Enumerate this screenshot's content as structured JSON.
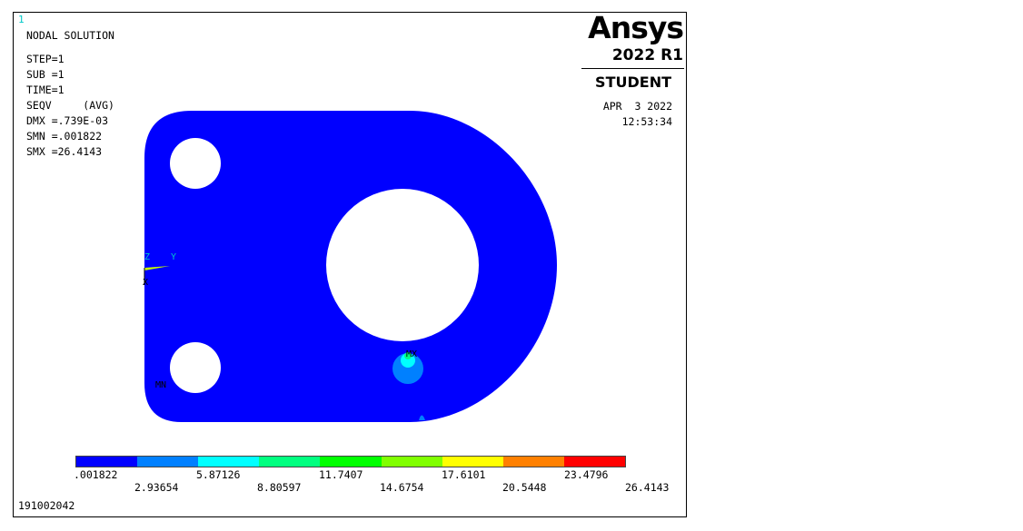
{
  "window": {
    "number": "1"
  },
  "info": {
    "title": "NODAL SOLUTION",
    "step": "STEP=1",
    "sub": "SUB =1",
    "time": "TIME=1",
    "seqv": "SEQV     (AVG)",
    "dmx": "DMX =.739E-03",
    "smn": "SMN =.001822",
    "smx": "SMX =26.4143"
  },
  "branding": {
    "logo": "Ansys",
    "version": "2022 R1",
    "license": "STUDENT",
    "date": "APR  3 2022",
    "time": "12:53:34"
  },
  "markers": {
    "mn": "MN",
    "mx": "MX"
  },
  "triad": {
    "z": "Z",
    "y": "Y",
    "x": "X"
  },
  "legend": {
    "colors": [
      "#0000ff",
      "#0080ff",
      "#00ffff",
      "#00ff80",
      "#00ff00",
      "#80ff00",
      "#ffff00",
      "#ff8000",
      "#ff0000"
    ],
    "labels_top": [
      ".001822",
      "5.87126",
      "11.7407",
      "17.6101",
      "23.4796"
    ],
    "labels_bottom": [
      "2.93654",
      "8.80597",
      "14.6754",
      "20.5448",
      "26.4143"
    ]
  },
  "footer": {
    "id": "191002042"
  },
  "colors": {
    "part": "#0000ff",
    "hot_outer": "#0080ff",
    "hot_inner": "#00ffff",
    "hot_core": "#00ff80",
    "triad_color": "#c8ff00"
  }
}
